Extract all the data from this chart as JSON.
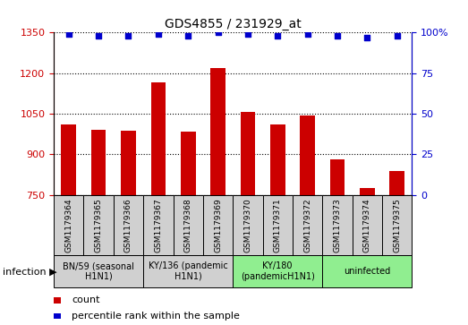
{
  "title": "GDS4855 / 231929_at",
  "samples": [
    "GSM1179364",
    "GSM1179365",
    "GSM1179366",
    "GSM1179367",
    "GSM1179368",
    "GSM1179369",
    "GSM1179370",
    "GSM1179371",
    "GSM1179372",
    "GSM1179373",
    "GSM1179374",
    "GSM1179375"
  ],
  "counts": [
    1010,
    990,
    988,
    1165,
    985,
    1218,
    1058,
    1010,
    1045,
    880,
    775,
    840
  ],
  "percentiles": [
    99,
    98,
    98,
    99,
    98,
    100,
    99,
    98,
    99,
    98,
    97,
    98
  ],
  "ylim_left": [
    750,
    1350
  ],
  "ylim_right": [
    0,
    100
  ],
  "yticks_left": [
    750,
    900,
    1050,
    1200,
    1350
  ],
  "yticks_right": [
    0,
    25,
    50,
    75,
    100
  ],
  "bar_color": "#cc0000",
  "dot_color": "#0000cc",
  "groups": [
    {
      "label": "BN/59 (seasonal\nH1N1)",
      "start": 0,
      "end": 3,
      "color": "#d0d0d0"
    },
    {
      "label": "KY/136 (pandemic\nH1N1)",
      "start": 3,
      "end": 6,
      "color": "#d0d0d0"
    },
    {
      "label": "KY/180\n(pandemicH1N1)",
      "start": 6,
      "end": 9,
      "color": "#90ee90"
    },
    {
      "label": "uninfected",
      "start": 9,
      "end": 12,
      "color": "#90ee90"
    }
  ],
  "sample_cell_color": "#d0d0d0",
  "infection_label": "infection",
  "legend_count_label": "count",
  "legend_pct_label": "percentile rank within the sample",
  "bar_width": 0.5,
  "fig_width": 5.23,
  "fig_height": 3.63
}
